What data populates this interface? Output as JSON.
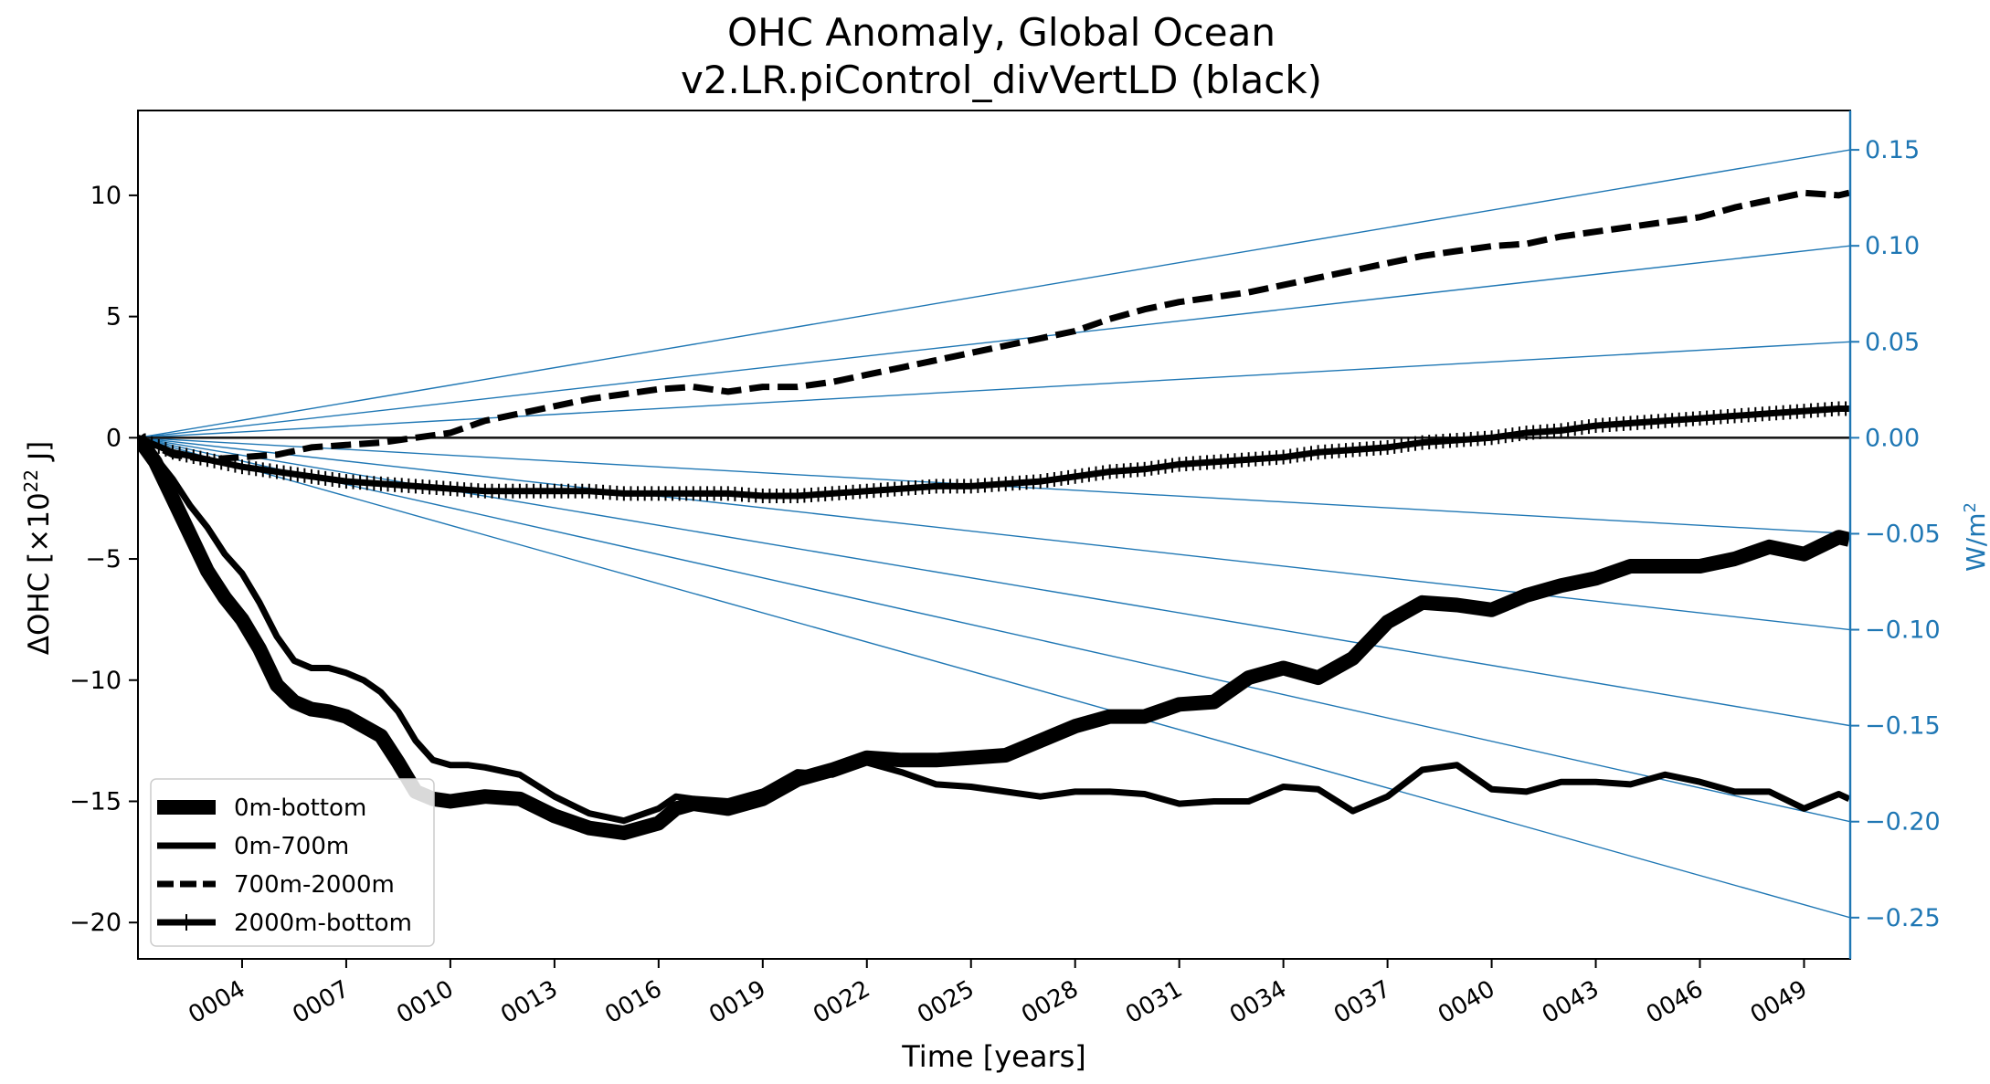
{
  "chart_data": {
    "type": "line",
    "title_lines": [
      "OHC Anomaly, Global Ocean",
      "v2.LR.piControl_divVertLD (black)"
    ],
    "xlabel": "Time [years]",
    "ylabel_parts": [
      "ΔOHC [×10",
      "22",
      " J]"
    ],
    "y2label_parts": [
      "W/m",
      "2"
    ],
    "xlim": [
      1,
      50.33
    ],
    "ylim": [
      -21.5,
      13.5
    ],
    "y2lim": [
      -0.2715,
      0.1705
    ],
    "grid": false,
    "legend_position": "lower-left",
    "x_tick_values": [
      4,
      7,
      10,
      13,
      16,
      19,
      22,
      25,
      28,
      31,
      34,
      37,
      40,
      43,
      46,
      49
    ],
    "x_tick_labels": [
      "0004",
      "0007",
      "0010",
      "0013",
      "0016",
      "0019",
      "0022",
      "0025",
      "0028",
      "0031",
      "0034",
      "0037",
      "0040",
      "0043",
      "0046",
      "0049"
    ],
    "y_tick_values": [
      10,
      5,
      0,
      -5,
      -10,
      -15,
      -20
    ],
    "y_tick_labels": [
      "10",
      "5",
      "0",
      "−5",
      "−10",
      "−15",
      "−20"
    ],
    "y2_tick_values": [
      0.15,
      0.1,
      0.05,
      0.0,
      -0.05,
      -0.1,
      -0.15,
      -0.2,
      -0.25
    ],
    "y2_tick_labels": [
      "0.15",
      "0.10",
      "0.05",
      "0.00",
      "−0.05",
      "−0.10",
      "−0.15",
      "−0.20",
      "−0.25"
    ],
    "colors": {
      "data": "#000000",
      "reference": "#1f77b4"
    },
    "reference_lines": {
      "description_unit": "W/m2",
      "rates": [
        0.15,
        0.1,
        0.05,
        -0.05,
        -0.1,
        -0.15,
        -0.2,
        -0.25
      ]
    },
    "series": [
      {
        "name": "0m-bottom",
        "style": "solid-thick",
        "x": [
          1,
          1.5,
          2,
          2.5,
          3,
          3.5,
          4,
          4.5,
          5,
          5.5,
          6,
          6.5,
          7,
          7.5,
          8,
          8.5,
          9,
          9.5,
          10,
          10.5,
          11,
          12,
          13,
          14,
          15,
          16,
          16.5,
          17,
          18,
          19,
          20,
          21,
          22,
          23,
          24,
          25,
          26,
          27,
          28,
          29,
          30,
          31,
          32,
          33,
          34,
          35,
          36,
          37,
          38,
          39,
          40,
          41,
          42,
          43,
          44,
          45,
          46,
          47,
          48,
          49,
          50,
          50.3
        ],
        "y": [
          0,
          -1.0,
          -2.5,
          -4.0,
          -5.5,
          -6.6,
          -7.5,
          -8.7,
          -10.2,
          -10.9,
          -11.2,
          -11.3,
          -11.5,
          -11.9,
          -12.3,
          -13.4,
          -14.6,
          -14.9,
          -15.0,
          -14.9,
          -14.8,
          -14.9,
          -15.6,
          -16.1,
          -16.3,
          -15.9,
          -15.3,
          -15.1,
          -15.3,
          -14.9,
          -14.1,
          -13.7,
          -13.2,
          -13.3,
          -13.3,
          -13.2,
          -13.1,
          -12.5,
          -11.9,
          -11.5,
          -11.5,
          -11.0,
          -10.9,
          -9.9,
          -9.5,
          -9.9,
          -9.1,
          -7.6,
          -6.8,
          -6.9,
          -7.1,
          -6.5,
          -6.1,
          -5.8,
          -5.3,
          -5.3,
          -5.3,
          -5.0,
          -4.5,
          -4.8,
          -4.1,
          -4.2
        ]
      },
      {
        "name": "0m-700m",
        "style": "solid",
        "x": [
          1,
          1.5,
          2,
          2.5,
          3,
          3.5,
          4,
          4.5,
          5,
          5.5,
          6,
          6.5,
          7,
          7.5,
          8,
          8.5,
          9,
          9.5,
          10,
          10.5,
          11,
          12,
          13,
          14,
          15,
          16,
          16.5,
          17,
          18,
          19,
          20,
          21,
          22,
          23,
          24,
          25,
          26,
          27,
          28,
          29,
          30,
          31,
          32,
          33,
          34,
          35,
          36,
          37,
          38,
          39,
          40,
          41,
          42,
          43,
          44,
          45,
          46,
          47,
          48,
          49,
          50,
          50.3
        ],
        "y": [
          0,
          -0.8,
          -1.7,
          -2.8,
          -3.7,
          -4.8,
          -5.6,
          -6.8,
          -8.2,
          -9.2,
          -9.5,
          -9.5,
          -9.7,
          -10.0,
          -10.5,
          -11.3,
          -12.5,
          -13.3,
          -13.5,
          -13.5,
          -13.6,
          -13.9,
          -14.8,
          -15.5,
          -15.8,
          -15.3,
          -14.8,
          -14.9,
          -15.0,
          -14.6,
          -13.8,
          -13.9,
          -13.4,
          -13.8,
          -14.3,
          -14.4,
          -14.6,
          -14.8,
          -14.6,
          -14.6,
          -14.7,
          -15.1,
          -15.0,
          -15.0,
          -14.4,
          -14.5,
          -15.4,
          -14.8,
          -13.7,
          -13.5,
          -14.5,
          -14.6,
          -14.2,
          -14.2,
          -14.3,
          -13.9,
          -14.2,
          -14.6,
          -14.6,
          -15.3,
          -14.7,
          -14.9
        ]
      },
      {
        "name": "700m-2000m",
        "style": "dashed",
        "x": [
          1,
          2,
          3,
          4,
          5,
          6,
          7,
          8,
          9,
          10,
          11,
          12,
          13,
          14,
          15,
          16,
          17,
          18,
          19,
          20,
          21,
          22,
          23,
          24,
          25,
          26,
          27,
          28,
          29,
          30,
          31,
          32,
          33,
          34,
          35,
          36,
          37,
          38,
          39,
          40,
          41,
          42,
          43,
          44,
          45,
          46,
          47,
          48,
          49,
          50,
          50.3
        ],
        "y": [
          0,
          -0.7,
          -0.9,
          -0.8,
          -0.7,
          -0.4,
          -0.3,
          -0.2,
          0.0,
          0.2,
          0.7,
          1.0,
          1.3,
          1.6,
          1.8,
          2.0,
          2.1,
          1.9,
          2.1,
          2.1,
          2.3,
          2.6,
          2.9,
          3.2,
          3.5,
          3.8,
          4.1,
          4.4,
          4.9,
          5.3,
          5.6,
          5.8,
          6.0,
          6.3,
          6.6,
          6.9,
          7.2,
          7.5,
          7.7,
          7.9,
          8.0,
          8.3,
          8.5,
          8.7,
          8.9,
          9.1,
          9.5,
          9.8,
          10.1,
          10.0,
          10.1
        ]
      },
      {
        "name": "2000m-bottom",
        "style": "plus-marker",
        "x": [
          1,
          2,
          3,
          4,
          5,
          6,
          7,
          8,
          9,
          10,
          11,
          12,
          13,
          14,
          15,
          16,
          17,
          18,
          19,
          20,
          21,
          22,
          23,
          24,
          25,
          26,
          27,
          28,
          29,
          30,
          31,
          32,
          33,
          34,
          35,
          36,
          37,
          38,
          39,
          40,
          41,
          42,
          43,
          44,
          45,
          46,
          47,
          48,
          49,
          50,
          50.3
        ],
        "y": [
          0,
          -0.6,
          -0.9,
          -1.2,
          -1.4,
          -1.6,
          -1.8,
          -1.9,
          -2.0,
          -2.1,
          -2.2,
          -2.2,
          -2.2,
          -2.2,
          -2.3,
          -2.3,
          -2.3,
          -2.3,
          -2.4,
          -2.4,
          -2.3,
          -2.2,
          -2.1,
          -2.0,
          -2.0,
          -1.9,
          -1.8,
          -1.6,
          -1.4,
          -1.3,
          -1.1,
          -1.0,
          -0.9,
          -0.8,
          -0.6,
          -0.5,
          -0.4,
          -0.2,
          -0.1,
          0.0,
          0.2,
          0.3,
          0.5,
          0.6,
          0.7,
          0.8,
          0.9,
          1.0,
          1.1,
          1.2,
          1.2
        ]
      }
    ]
  }
}
